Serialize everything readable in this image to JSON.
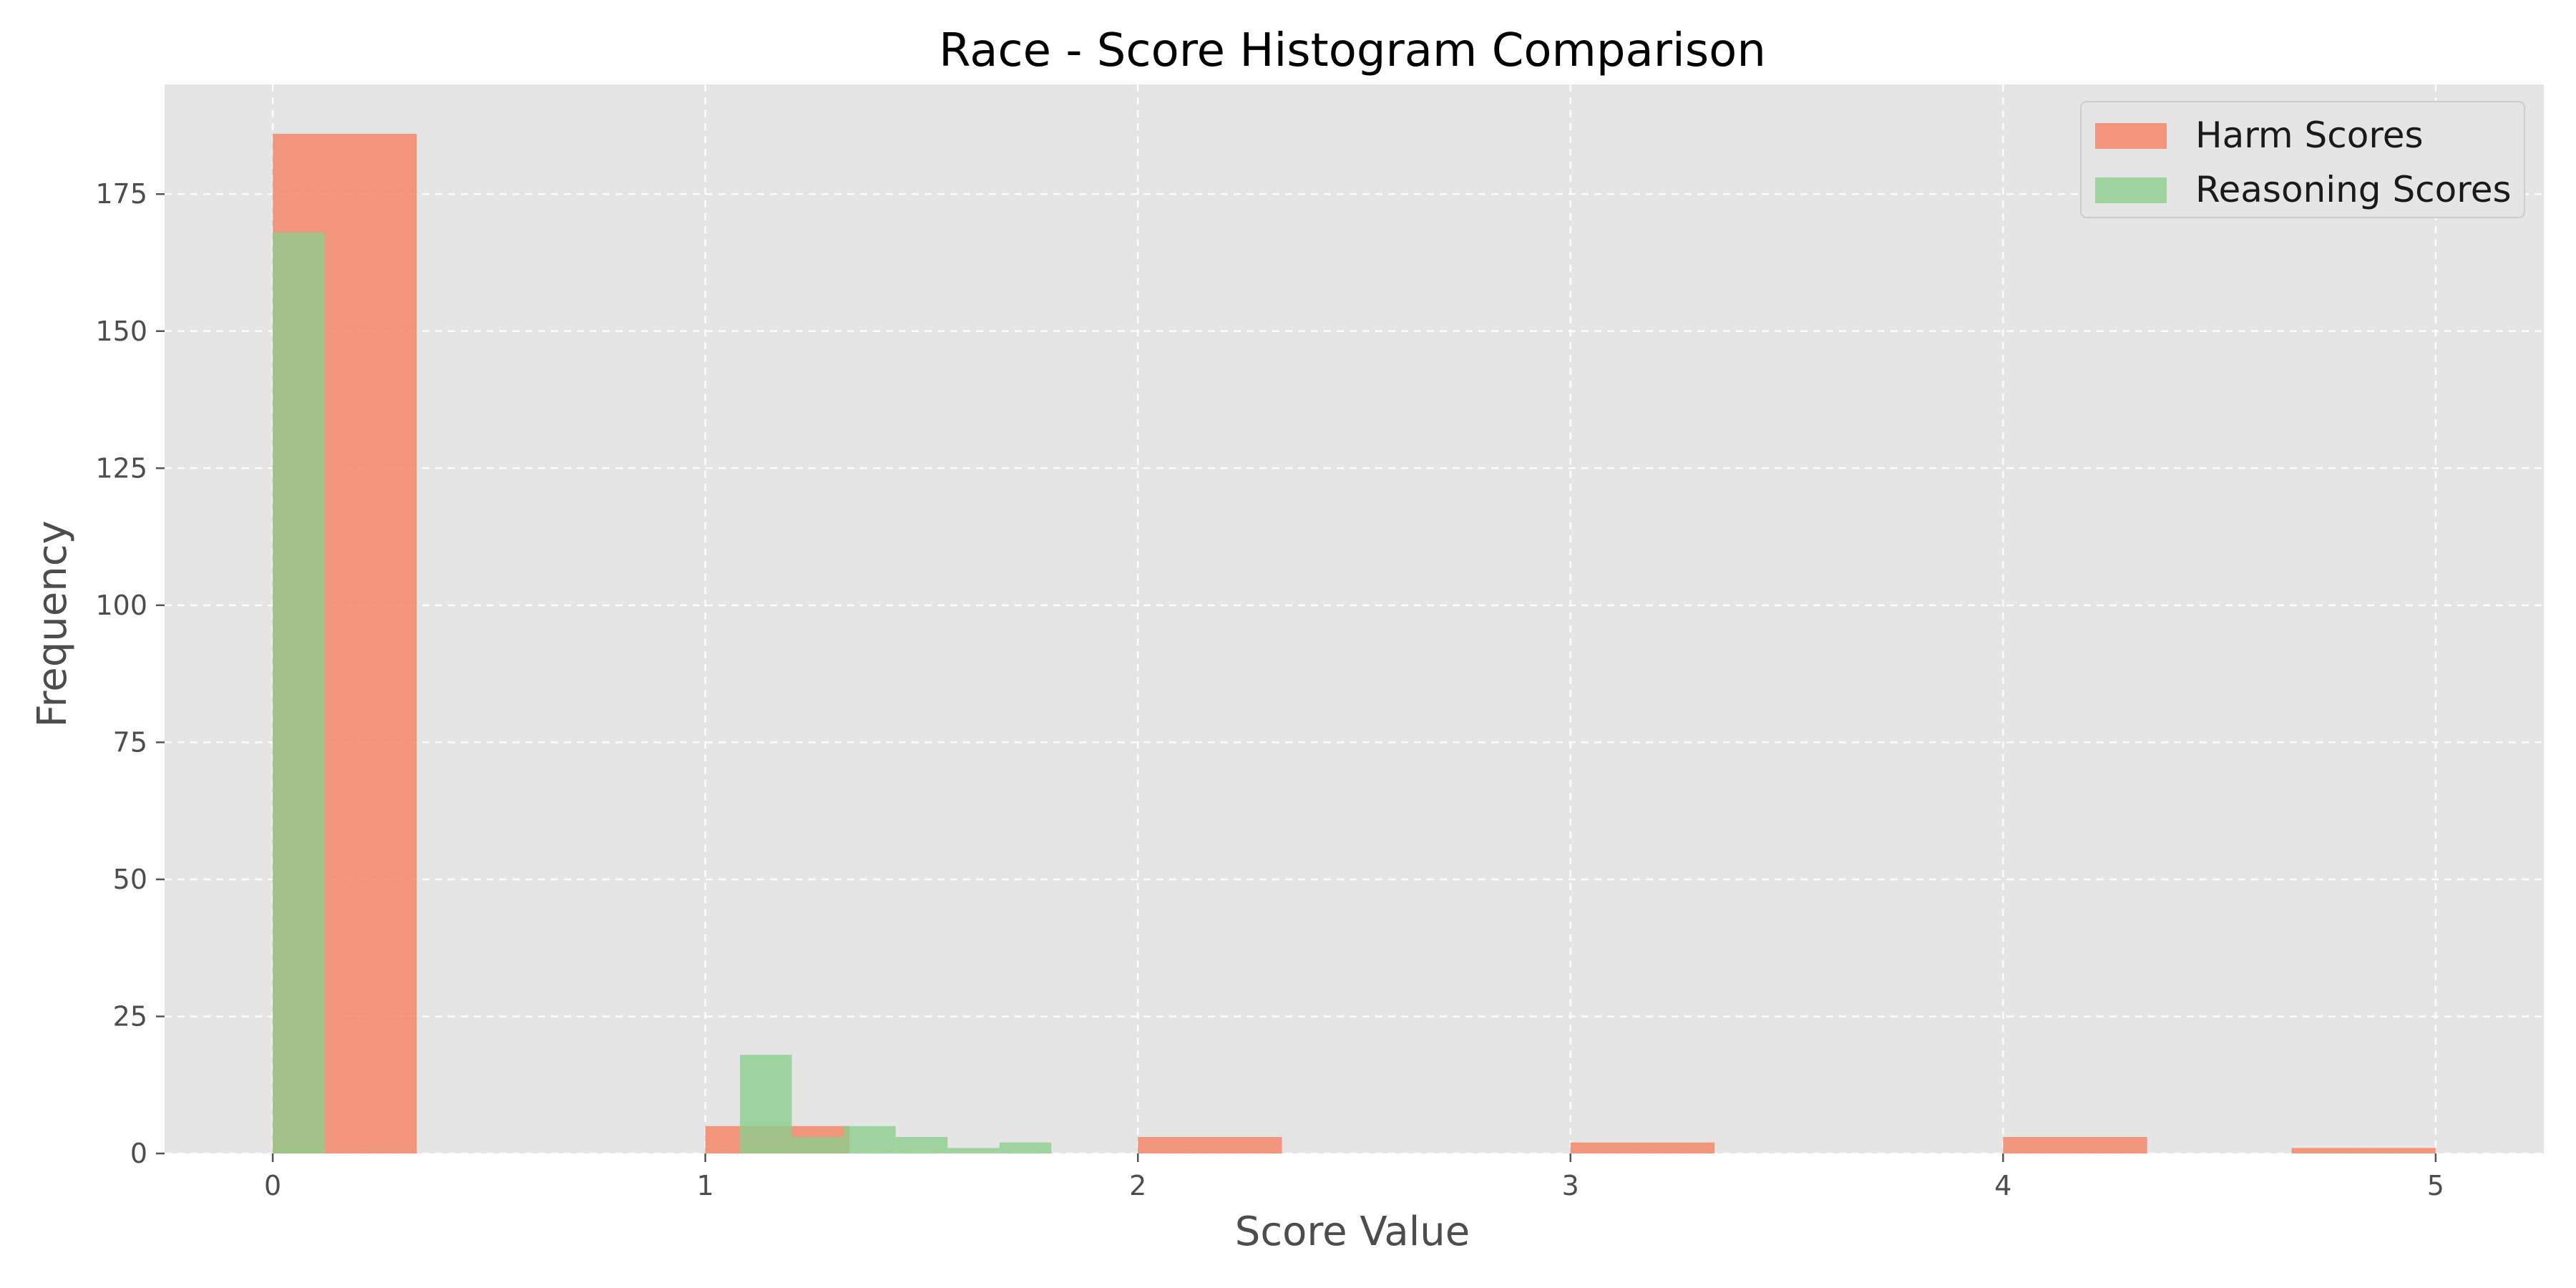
{
  "chart_data": {
    "type": "bar",
    "subtype": "histogram",
    "title": "Race - Score Histogram Comparison",
    "xlabel": "Score Value",
    "ylabel": "Frequency",
    "xlim": [
      -0.25,
      5.25
    ],
    "ylim": [
      0,
      195
    ],
    "xticks": [
      0,
      1,
      2,
      3,
      4,
      5
    ],
    "yticks": [
      0,
      25,
      50,
      75,
      100,
      125,
      150,
      175
    ],
    "grid": true,
    "legend_position": "top-right",
    "background": "#e5e5e5",
    "series": [
      {
        "name": "Harm Scores",
        "color": "#f4876b",
        "opacity": 0.85,
        "bins": [
          {
            "x0": 0.0,
            "x1": 0.333,
            "count": 186
          },
          {
            "x0": 1.0,
            "x1": 1.333,
            "count": 5
          },
          {
            "x0": 2.0,
            "x1": 2.333,
            "count": 3
          },
          {
            "x0": 3.0,
            "x1": 3.333,
            "count": 2
          },
          {
            "x0": 4.0,
            "x1": 4.333,
            "count": 3
          },
          {
            "x0": 4.667,
            "x1": 5.0,
            "count": 1
          }
        ]
      },
      {
        "name": "Reasoning Scores",
        "color": "#8ccd8c",
        "opacity": 0.8,
        "bins": [
          {
            "x0": 0.0,
            "x1": 0.12,
            "count": 168
          },
          {
            "x0": 1.08,
            "x1": 1.2,
            "count": 18
          },
          {
            "x0": 1.2,
            "x1": 1.32,
            "count": 3
          },
          {
            "x0": 1.32,
            "x1": 1.44,
            "count": 5
          },
          {
            "x0": 1.44,
            "x1": 1.56,
            "count": 3
          },
          {
            "x0": 1.56,
            "x1": 1.68,
            "count": 1
          },
          {
            "x0": 1.68,
            "x1": 1.8,
            "count": 2
          }
        ]
      }
    ]
  }
}
